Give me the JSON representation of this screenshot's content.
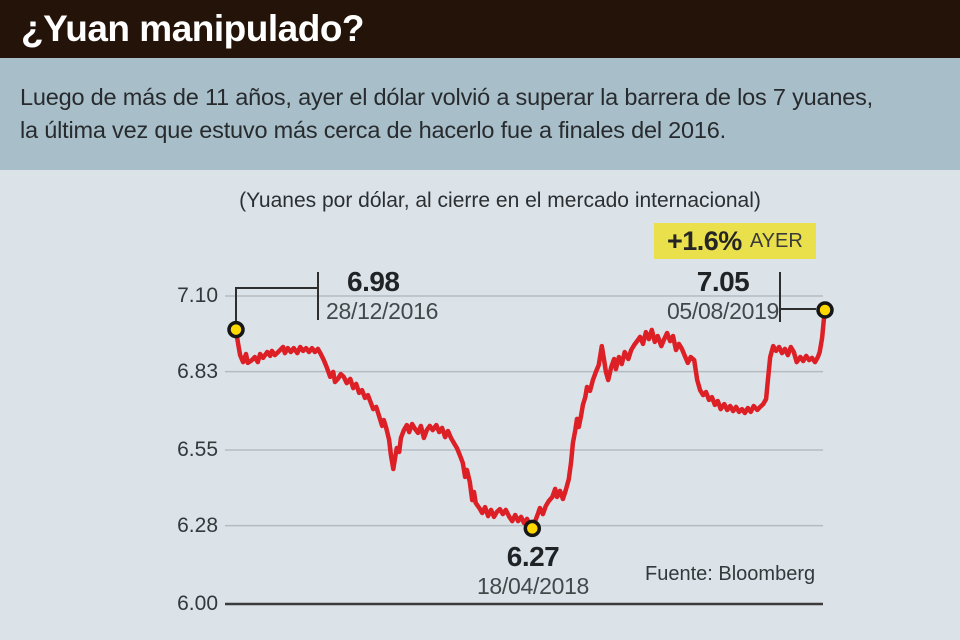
{
  "header": {
    "title": "¿Yuan manipulado?"
  },
  "intro": {
    "lines": [
      "Luego de más de 11 años, ayer el dólar volvió a superar  la barrera de los 7 yuanes,",
      "la última vez que estuvo más cerca de hacerlo fue a finales del 2016."
    ]
  },
  "badge": {
    "value": "+1.6%",
    "label": "AYER"
  },
  "annotations": {
    "high2016": {
      "value": "6.98",
      "date": "28/12/2016"
    },
    "high2019": {
      "value": "7.05",
      "date": "05/08/2019"
    },
    "low2018": {
      "value": "6.27",
      "date": "18/04/2018"
    }
  },
  "source": "Fuente: Bloomberg",
  "colors": {
    "header_bg": "#231309",
    "intro_band_bg": "#a8bec9",
    "chart_bg": "#dbe3e9",
    "line_red": "#dd1f26",
    "marker_yellow": "#ffd800",
    "badge_yellow": "#e9e04c",
    "gridline_gray": "#b5bbc1"
  },
  "chart_data": {
    "type": "line",
    "title": "(Yuanes por dólar, al cierre en el mercado internacional)",
    "xlabel": "",
    "ylabel": "Yuanes por dólar",
    "x_range": [
      "28/12/2016",
      "05/08/2019"
    ],
    "ylim": [
      6.0,
      7.1
    ],
    "grid": true,
    "y_ticks": [
      "7.10",
      "6.83",
      "6.55",
      "6.28",
      "6.00"
    ],
    "y_tick_values": [
      7.1,
      6.83,
      6.55,
      6.28,
      6.0
    ],
    "markers": [
      {
        "f": 0.0,
        "value": 6.98,
        "date": "28/12/2016"
      },
      {
        "f": 0.503,
        "value": 6.27,
        "date": "18/04/2018"
      },
      {
        "f": 1.0,
        "value": 7.05,
        "date": "05/08/2019"
      }
    ],
    "yesterday_change_pct": "+1.6%",
    "series": [
      {
        "name": "Yuanes por dólar",
        "color": "#dd1f26",
        "points": [
          [
            0.0,
            6.979
          ],
          [
            0.003,
            6.936
          ],
          [
            0.007,
            6.889
          ],
          [
            0.012,
            6.864
          ],
          [
            0.017,
            6.893
          ],
          [
            0.02,
            6.861
          ],
          [
            0.027,
            6.871
          ],
          [
            0.032,
            6.882
          ],
          [
            0.037,
            6.864
          ],
          [
            0.041,
            6.893
          ],
          [
            0.046,
            6.879
          ],
          [
            0.053,
            6.9
          ],
          [
            0.058,
            6.886
          ],
          [
            0.061,
            6.904
          ],
          [
            0.066,
            6.889
          ],
          [
            0.075,
            6.907
          ],
          [
            0.08,
            6.918
          ],
          [
            0.083,
            6.896
          ],
          [
            0.088,
            6.914
          ],
          [
            0.093,
            6.9
          ],
          [
            0.098,
            6.914
          ],
          [
            0.104,
            6.896
          ],
          [
            0.109,
            6.918
          ],
          [
            0.114,
            6.904
          ],
          [
            0.119,
            6.914
          ],
          [
            0.124,
            6.9
          ],
          [
            0.129,
            6.914
          ],
          [
            0.134,
            6.9
          ],
          [
            0.139,
            6.911
          ],
          [
            0.144,
            6.893
          ],
          [
            0.149,
            6.871
          ],
          [
            0.154,
            6.846
          ],
          [
            0.16,
            6.811
          ],
          [
            0.165,
            6.829
          ],
          [
            0.168,
            6.793
          ],
          [
            0.173,
            6.804
          ],
          [
            0.178,
            6.821
          ],
          [
            0.183,
            6.811
          ],
          [
            0.188,
            6.789
          ],
          [
            0.194,
            6.804
          ],
          [
            0.199,
            6.771
          ],
          [
            0.204,
            6.786
          ],
          [
            0.209,
            6.754
          ],
          [
            0.214,
            6.764
          ],
          [
            0.219,
            6.736
          ],
          [
            0.224,
            6.746
          ],
          [
            0.229,
            6.718
          ],
          [
            0.233,
            6.696
          ],
          [
            0.238,
            6.704
          ],
          [
            0.243,
            6.671
          ],
          [
            0.248,
            6.636
          ],
          [
            0.251,
            6.657
          ],
          [
            0.255,
            6.629
          ],
          [
            0.26,
            6.586
          ],
          [
            0.263,
            6.532
          ],
          [
            0.267,
            6.482
          ],
          [
            0.27,
            6.521
          ],
          [
            0.273,
            6.557
          ],
          [
            0.277,
            6.543
          ],
          [
            0.28,
            6.593
          ],
          [
            0.285,
            6.621
          ],
          [
            0.29,
            6.639
          ],
          [
            0.294,
            6.614
          ],
          [
            0.299,
            6.643
          ],
          [
            0.304,
            6.625
          ],
          [
            0.309,
            6.611
          ],
          [
            0.314,
            6.636
          ],
          [
            0.319,
            6.593
          ],
          [
            0.324,
            6.621
          ],
          [
            0.329,
            6.636
          ],
          [
            0.334,
            6.621
          ],
          [
            0.34,
            6.639
          ],
          [
            0.345,
            6.614
          ],
          [
            0.35,
            6.629
          ],
          [
            0.355,
            6.596
          ],
          [
            0.36,
            6.618
          ],
          [
            0.365,
            6.593
          ],
          [
            0.37,
            6.575
          ],
          [
            0.375,
            6.557
          ],
          [
            0.38,
            6.532
          ],
          [
            0.385,
            6.504
          ],
          [
            0.389,
            6.454
          ],
          [
            0.392,
            6.479
          ],
          [
            0.397,
            6.436
          ],
          [
            0.401,
            6.371
          ],
          [
            0.404,
            6.4
          ],
          [
            0.407,
            6.361
          ],
          [
            0.413,
            6.343
          ],
          [
            0.418,
            6.325
          ],
          [
            0.423,
            6.346
          ],
          [
            0.428,
            6.314
          ],
          [
            0.433,
            6.336
          ],
          [
            0.438,
            6.311
          ],
          [
            0.443,
            6.329
          ],
          [
            0.448,
            6.339
          ],
          [
            0.453,
            6.321
          ],
          [
            0.458,
            6.336
          ],
          [
            0.464,
            6.311
          ],
          [
            0.469,
            6.296
          ],
          [
            0.474,
            6.318
          ],
          [
            0.479,
            6.296
          ],
          [
            0.484,
            6.311
          ],
          [
            0.489,
            6.289
          ],
          [
            0.494,
            6.304
          ],
          [
            0.499,
            6.279
          ],
          [
            0.503,
            6.271
          ],
          [
            0.508,
            6.296
          ],
          [
            0.513,
            6.325
          ],
          [
            0.516,
            6.343
          ],
          [
            0.521,
            6.321
          ],
          [
            0.526,
            6.35
          ],
          [
            0.531,
            6.368
          ],
          [
            0.537,
            6.382
          ],
          [
            0.542,
            6.411
          ],
          [
            0.545,
            6.382
          ],
          [
            0.55,
            6.404
          ],
          [
            0.555,
            6.375
          ],
          [
            0.56,
            6.407
          ],
          [
            0.565,
            6.446
          ],
          [
            0.569,
            6.507
          ],
          [
            0.572,
            6.575
          ],
          [
            0.576,
            6.621
          ],
          [
            0.579,
            6.661
          ],
          [
            0.582,
            6.632
          ],
          [
            0.586,
            6.675
          ],
          [
            0.589,
            6.711
          ],
          [
            0.593,
            6.739
          ],
          [
            0.596,
            6.775
          ],
          [
            0.601,
            6.761
          ],
          [
            0.606,
            6.8
          ],
          [
            0.611,
            6.829
          ],
          [
            0.616,
            6.854
          ],
          [
            0.621,
            6.921
          ],
          [
            0.625,
            6.871
          ],
          [
            0.628,
            6.829
          ],
          [
            0.632,
            6.8
          ],
          [
            0.637,
            6.846
          ],
          [
            0.642,
            6.875
          ],
          [
            0.645,
            6.839
          ],
          [
            0.65,
            6.882
          ],
          [
            0.655,
            6.857
          ],
          [
            0.66,
            6.9
          ],
          [
            0.666,
            6.875
          ],
          [
            0.671,
            6.907
          ],
          [
            0.676,
            6.925
          ],
          [
            0.681,
            6.939
          ],
          [
            0.686,
            6.954
          ],
          [
            0.691,
            6.929
          ],
          [
            0.696,
            6.971
          ],
          [
            0.701,
            6.946
          ],
          [
            0.706,
            6.979
          ],
          [
            0.711,
            6.936
          ],
          [
            0.716,
            6.957
          ],
          [
            0.722,
            6.921
          ],
          [
            0.727,
            6.946
          ],
          [
            0.732,
            6.968
          ],
          [
            0.737,
            6.939
          ],
          [
            0.742,
            6.957
          ],
          [
            0.747,
            6.907
          ],
          [
            0.752,
            6.929
          ],
          [
            0.757,
            6.911
          ],
          [
            0.762,
            6.886
          ],
          [
            0.767,
            6.861
          ],
          [
            0.772,
            6.882
          ],
          [
            0.778,
            6.871
          ],
          [
            0.783,
            6.8
          ],
          [
            0.788,
            6.764
          ],
          [
            0.793,
            6.746
          ],
          [
            0.798,
            6.757
          ],
          [
            0.803,
            6.729
          ],
          [
            0.808,
            6.739
          ],
          [
            0.813,
            6.711
          ],
          [
            0.818,
            6.725
          ],
          [
            0.823,
            6.696
          ],
          [
            0.829,
            6.714
          ],
          [
            0.834,
            6.693
          ],
          [
            0.839,
            6.707
          ],
          [
            0.844,
            6.689
          ],
          [
            0.849,
            6.704
          ],
          [
            0.854,
            6.686
          ],
          [
            0.859,
            6.696
          ],
          [
            0.864,
            6.682
          ],
          [
            0.869,
            6.7
          ],
          [
            0.874,
            6.686
          ],
          [
            0.879,
            6.707
          ],
          [
            0.885,
            6.693
          ],
          [
            0.89,
            6.704
          ],
          [
            0.895,
            6.714
          ],
          [
            0.9,
            6.732
          ],
          [
            0.903,
            6.8
          ],
          [
            0.907,
            6.882
          ],
          [
            0.912,
            6.921
          ],
          [
            0.917,
            6.904
          ],
          [
            0.922,
            6.918
          ],
          [
            0.927,
            6.896
          ],
          [
            0.932,
            6.911
          ],
          [
            0.937,
            6.889
          ],
          [
            0.942,
            6.918
          ],
          [
            0.947,
            6.9
          ],
          [
            0.952,
            6.864
          ],
          [
            0.958,
            6.882
          ],
          [
            0.963,
            6.868
          ],
          [
            0.968,
            6.886
          ],
          [
            0.973,
            6.871
          ],
          [
            0.978,
            6.879
          ],
          [
            0.983,
            6.864
          ],
          [
            0.988,
            6.882
          ],
          [
            0.991,
            6.9
          ],
          [
            0.995,
            6.95
          ],
          [
            0.998,
            7.014
          ],
          [
            1.0,
            7.05
          ]
        ]
      }
    ],
    "source": "Fuente: Bloomberg"
  }
}
